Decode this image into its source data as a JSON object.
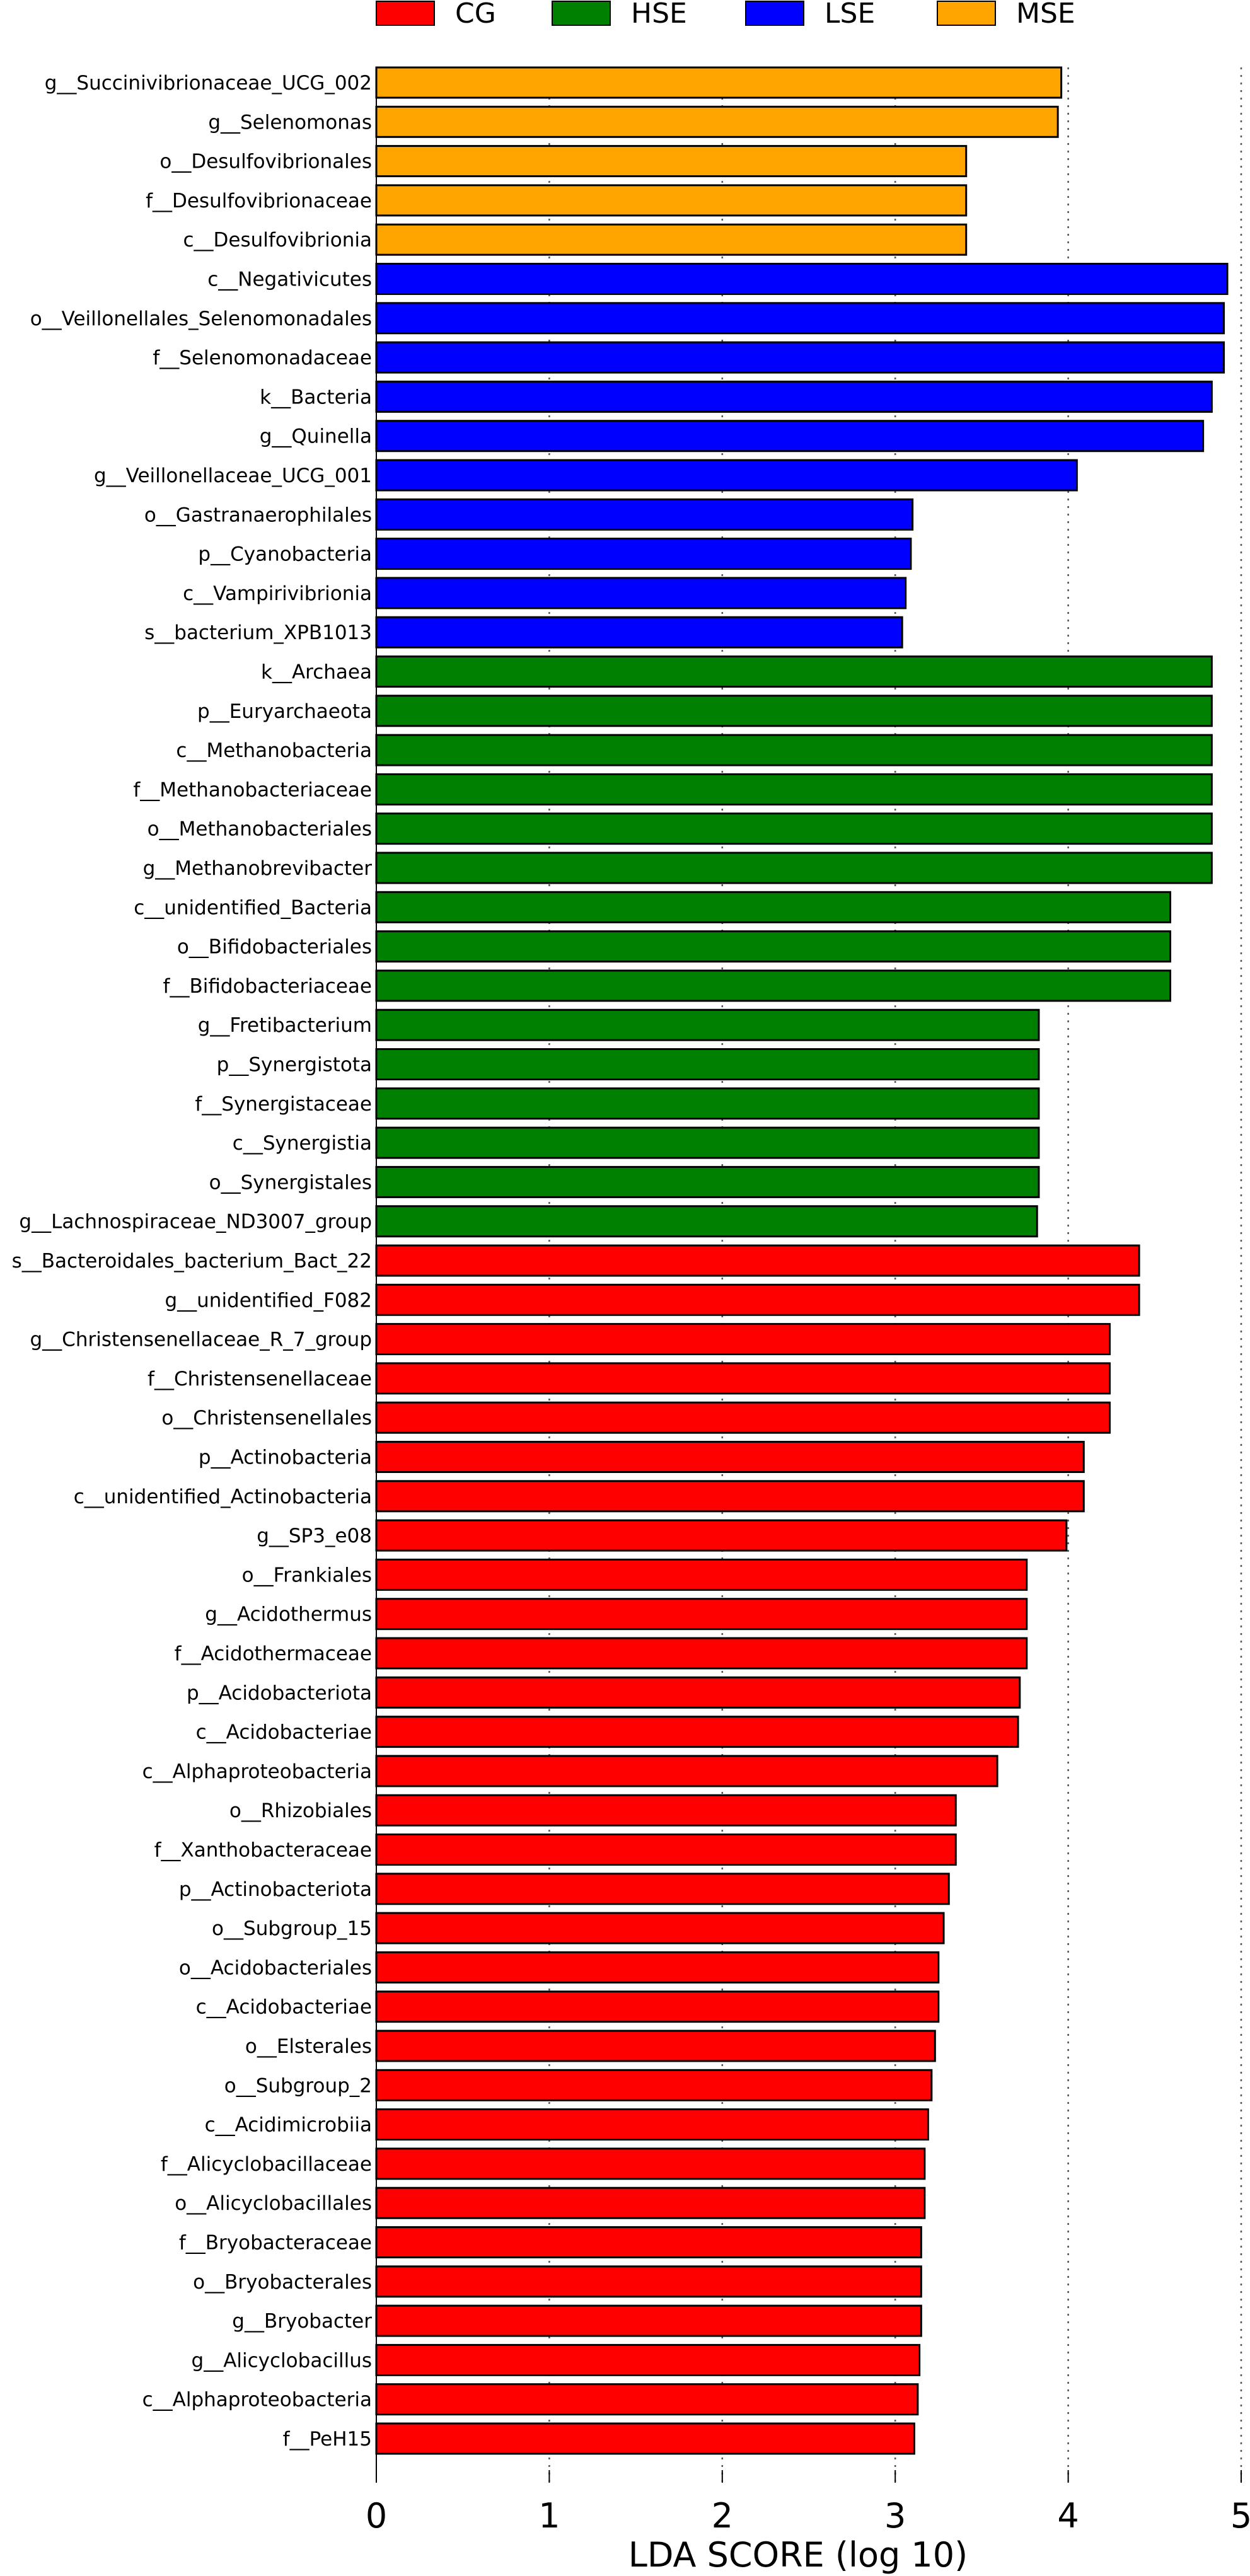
{
  "chart_data": {
    "type": "bar",
    "orientation": "horizontal",
    "title": "",
    "xlabel": "LDA SCORE (log 10)",
    "ylabel": "",
    "xlim": [
      0,
      5
    ],
    "xticks": [
      "0",
      "1",
      "2",
      "3",
      "4",
      "5"
    ],
    "grid": "vertical dotted lines at 1, 2, 3, 4, 5",
    "legend_position": "top",
    "legend": [
      {
        "name": "CG",
        "color": "#ff0000"
      },
      {
        "name": "HSE",
        "color": "#008000"
      },
      {
        "name": "LSE",
        "color": "#0000ff"
      },
      {
        "name": "MSE",
        "color": "#ffa500"
      }
    ],
    "bars": [
      {
        "label": "g__Succinivibrionaceae_UCG_002",
        "value": 3.96,
        "group": "MSE"
      },
      {
        "label": "g__Selenomonas",
        "value": 3.94,
        "group": "MSE"
      },
      {
        "label": "o__Desulfovibrionales",
        "value": 3.41,
        "group": "MSE"
      },
      {
        "label": "f__Desulfovibrionaceae",
        "value": 3.41,
        "group": "MSE"
      },
      {
        "label": "c__Desulfovibrionia",
        "value": 3.41,
        "group": "MSE"
      },
      {
        "label": "c__Negativicutes",
        "value": 4.92,
        "group": "LSE"
      },
      {
        "label": "o__Veillonellales_Selenomonadales",
        "value": 4.9,
        "group": "LSE"
      },
      {
        "label": "f__Selenomonadaceae",
        "value": 4.9,
        "group": "LSE"
      },
      {
        "label": "k__Bacteria",
        "value": 4.83,
        "group": "LSE"
      },
      {
        "label": "g__Quinella",
        "value": 4.78,
        "group": "LSE"
      },
      {
        "label": "g__Veillonellaceae_UCG_001",
        "value": 4.05,
        "group": "LSE"
      },
      {
        "label": "o__Gastranaerophilales",
        "value": 3.1,
        "group": "LSE"
      },
      {
        "label": "p__Cyanobacteria",
        "value": 3.09,
        "group": "LSE"
      },
      {
        "label": "c__Vampirivibrionia",
        "value": 3.06,
        "group": "LSE"
      },
      {
        "label": "s__bacterium_XPB1013",
        "value": 3.04,
        "group": "LSE"
      },
      {
        "label": "k__Archaea",
        "value": 4.83,
        "group": "HSE"
      },
      {
        "label": "p__Euryarchaeota",
        "value": 4.83,
        "group": "HSE"
      },
      {
        "label": "c__Methanobacteria",
        "value": 4.83,
        "group": "HSE"
      },
      {
        "label": "f__Methanobacteriaceae",
        "value": 4.83,
        "group": "HSE"
      },
      {
        "label": "o__Methanobacteriales",
        "value": 4.83,
        "group": "HSE"
      },
      {
        "label": "g__Methanobrevibacter",
        "value": 4.83,
        "group": "HSE"
      },
      {
        "label": "c__unidentified_Bacteria",
        "value": 4.59,
        "group": "HSE"
      },
      {
        "label": "o__Bifidobacteriales",
        "value": 4.59,
        "group": "HSE"
      },
      {
        "label": "f__Bifidobacteriaceae",
        "value": 4.59,
        "group": "HSE"
      },
      {
        "label": "g__Fretibacterium",
        "value": 3.83,
        "group": "HSE"
      },
      {
        "label": "p__Synergistota",
        "value": 3.83,
        "group": "HSE"
      },
      {
        "label": "f__Synergistaceae",
        "value": 3.83,
        "group": "HSE"
      },
      {
        "label": "c__Synergistia",
        "value": 3.83,
        "group": "HSE"
      },
      {
        "label": "o__Synergistales",
        "value": 3.83,
        "group": "HSE"
      },
      {
        "label": "g__Lachnospiraceae_ND3007_group",
        "value": 3.82,
        "group": "HSE"
      },
      {
        "label": "s__Bacteroidales_bacterium_Bact_22",
        "value": 4.41,
        "group": "CG"
      },
      {
        "label": "g__unidentified_F082",
        "value": 4.41,
        "group": "CG"
      },
      {
        "label": "g__Christensenellaceae_R_7_group",
        "value": 4.24,
        "group": "CG"
      },
      {
        "label": "f__Christensenellaceae",
        "value": 4.24,
        "group": "CG"
      },
      {
        "label": "o__Christensenellales",
        "value": 4.24,
        "group": "CG"
      },
      {
        "label": "p__Actinobacteria",
        "value": 4.09,
        "group": "CG"
      },
      {
        "label": "c__unidentified_Actinobacteria",
        "value": 4.09,
        "group": "CG"
      },
      {
        "label": "g__SP3_e08",
        "value": 3.99,
        "group": "CG"
      },
      {
        "label": "o__Frankiales",
        "value": 3.76,
        "group": "CG"
      },
      {
        "label": "g__Acidothermus",
        "value": 3.76,
        "group": "CG"
      },
      {
        "label": "f__Acidothermaceae",
        "value": 3.76,
        "group": "CG"
      },
      {
        "label": "p__Acidobacteriota",
        "value": 3.72,
        "group": "CG"
      },
      {
        "label": "c__Acidobacteriae",
        "value": 3.71,
        "group": "CG"
      },
      {
        "label": "c__Alphaproteobacteria",
        "value": 3.59,
        "group": "CG"
      },
      {
        "label": "o__Rhizobiales",
        "value": 3.35,
        "group": "CG"
      },
      {
        "label": "f__Xanthobacteraceae",
        "value": 3.35,
        "group": "CG"
      },
      {
        "label": "p__Actinobacteriota",
        "value": 3.31,
        "group": "CG"
      },
      {
        "label": "o__Subgroup_15",
        "value": 3.28,
        "group": "CG"
      },
      {
        "label": "o__Acidobacteriales",
        "value": 3.25,
        "group": "CG"
      },
      {
        "label": "c__Acidobacteriae",
        "value": 3.25,
        "group": "CG"
      },
      {
        "label": "o__Elsterales",
        "value": 3.23,
        "group": "CG"
      },
      {
        "label": "o__Subgroup_2",
        "value": 3.21,
        "group": "CG"
      },
      {
        "label": "c__Acidimicrobiia",
        "value": 3.19,
        "group": "CG"
      },
      {
        "label": "f__Alicyclobacillaceae",
        "value": 3.17,
        "group": "CG"
      },
      {
        "label": "o__Alicyclobacillales",
        "value": 3.17,
        "group": "CG"
      },
      {
        "label": "f__Bryobacteraceae",
        "value": 3.15,
        "group": "CG"
      },
      {
        "label": "o__Bryobacterales",
        "value": 3.15,
        "group": "CG"
      },
      {
        "label": "g__Bryobacter",
        "value": 3.15,
        "group": "CG"
      },
      {
        "label": "g__Alicyclobacillus",
        "value": 3.14,
        "group": "CG"
      },
      {
        "label": "c__Alphaproteobacteria",
        "value": 3.13,
        "group": "CG"
      },
      {
        "label": "f__PeH15",
        "value": 3.11,
        "group": "CG"
      }
    ]
  }
}
